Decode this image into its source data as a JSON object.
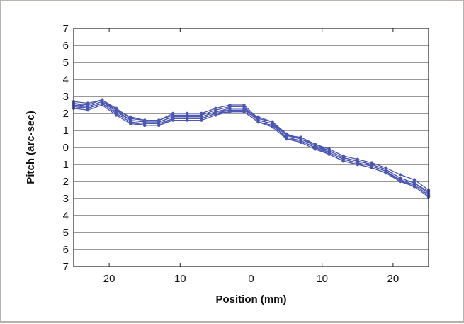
{
  "chart_data": {
    "type": "line",
    "title": "",
    "xlabel": "Position (mm)",
    "ylabel": "Pitch (arc-sec)",
    "x": [
      -25,
      -23,
      -21,
      -19,
      -17,
      -15,
      -13,
      -11,
      -9,
      -7,
      -5,
      -3,
      -1,
      1,
      3,
      5,
      7,
      9,
      11,
      13,
      15,
      17,
      19,
      21,
      23,
      25
    ],
    "xlim": [
      -25,
      25
    ],
    "ylim": [
      -7,
      7
    ],
    "x_ticks": [
      {
        "value": -20,
        "label": "20"
      },
      {
        "value": -10,
        "label": "10"
      },
      {
        "value": 0,
        "label": "0"
      },
      {
        "value": 10,
        "label": "10"
      },
      {
        "value": 20,
        "label": "20"
      }
    ],
    "y_ticks": [
      {
        "value": 7,
        "label": "7"
      },
      {
        "value": 6,
        "label": "6"
      },
      {
        "value": 5,
        "label": "5"
      },
      {
        "value": 4,
        "label": "4"
      },
      {
        "value": 3,
        "label": "3"
      },
      {
        "value": 2,
        "label": "2"
      },
      {
        "value": 1,
        "label": "1"
      },
      {
        "value": 0,
        "label": "0"
      },
      {
        "value": -1,
        "label": "1"
      },
      {
        "value": -2,
        "label": "2"
      },
      {
        "value": -3,
        "label": "3"
      },
      {
        "value": -4,
        "label": "4"
      },
      {
        "value": -5,
        "label": "5"
      },
      {
        "value": -6,
        "label": "6"
      },
      {
        "value": -7,
        "label": "7"
      }
    ],
    "grid": "horizontal",
    "legend": "none",
    "series_color": "#4a56b0",
    "series": [
      {
        "values": [
          2.6,
          2.5,
          2.8,
          2.2,
          1.8,
          1.6,
          1.6,
          1.9,
          1.9,
          1.9,
          2.2,
          2.4,
          2.4,
          1.6,
          1.4,
          0.7,
          0.5,
          0.2,
          -0.2,
          -0.6,
          -0.8,
          -1.0,
          -1.3,
          -1.8,
          -2.1,
          -2.7
        ]
      },
      {
        "values": [
          2.5,
          2.4,
          2.7,
          2.1,
          1.6,
          1.5,
          1.5,
          1.8,
          1.8,
          1.8,
          2.1,
          2.2,
          2.2,
          1.8,
          1.5,
          0.8,
          0.5,
          0.1,
          -0.3,
          -0.7,
          -0.9,
          -1.1,
          -1.4,
          -1.9,
          -2.2,
          -2.8
        ]
      },
      {
        "values": [
          2.4,
          2.3,
          2.6,
          2.0,
          1.5,
          1.4,
          1.4,
          1.7,
          1.7,
          1.7,
          2.0,
          2.1,
          2.1,
          1.5,
          1.3,
          0.6,
          0.4,
          0.0,
          -0.3,
          -0.7,
          -0.9,
          -1.1,
          -1.4,
          -2.0,
          -2.3,
          -2.9
        ]
      },
      {
        "values": [
          2.5,
          2.3,
          2.6,
          2.0,
          1.5,
          1.3,
          1.3,
          1.7,
          1.7,
          1.7,
          2.0,
          2.2,
          2.2,
          1.6,
          1.4,
          0.5,
          0.4,
          0.0,
          -0.4,
          -0.8,
          -1.0,
          -1.2,
          -1.5,
          -2.0,
          -2.2,
          -2.8
        ]
      },
      {
        "values": [
          2.7,
          2.6,
          2.8,
          2.3,
          1.7,
          1.6,
          1.6,
          2.0,
          2.0,
          2.0,
          2.3,
          2.5,
          2.5,
          1.7,
          1.5,
          0.7,
          0.6,
          0.2,
          -0.1,
          -0.5,
          -0.7,
          -0.9,
          -1.2,
          -1.6,
          -1.9,
          -2.5
        ]
      },
      {
        "values": [
          2.3,
          2.2,
          2.5,
          1.9,
          1.4,
          1.3,
          1.3,
          1.6,
          1.6,
          1.6,
          1.9,
          2.1,
          2.1,
          1.5,
          1.2,
          0.5,
          0.3,
          -0.1,
          -0.4,
          -0.8,
          -1.0,
          -1.2,
          -1.5,
          -2.0,
          -2.3,
          -2.9
        ]
      },
      {
        "values": [
          2.6,
          2.4,
          2.7,
          2.2,
          1.6,
          1.5,
          1.5,
          1.8,
          1.8,
          1.8,
          2.1,
          2.3,
          2.3,
          1.7,
          1.5,
          0.7,
          0.5,
          0.1,
          -0.2,
          -0.6,
          -0.8,
          -1.0,
          -1.3,
          -1.8,
          -2.1,
          -2.6
        ]
      }
    ]
  }
}
